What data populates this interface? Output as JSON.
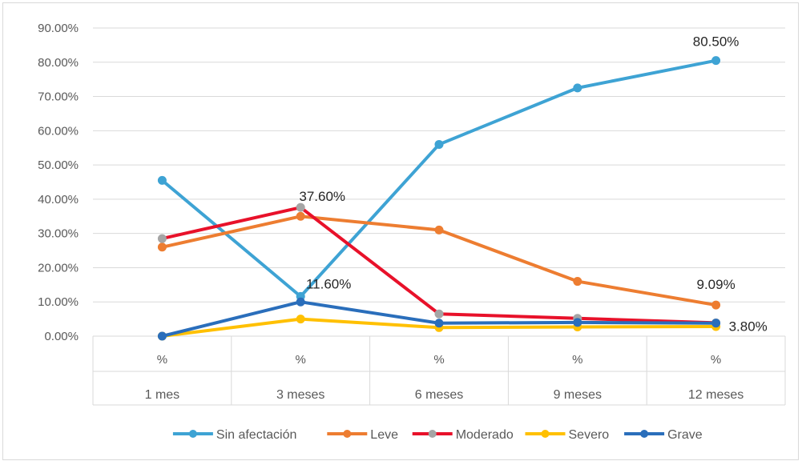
{
  "chart_data": {
    "type": "line",
    "title": "",
    "xlabel": "",
    "ylabel": "",
    "ylim": [
      0,
      90
    ],
    "yticks": [
      0,
      10,
      20,
      30,
      40,
      50,
      60,
      70,
      80,
      90
    ],
    "y_tick_labels": [
      "0.00%",
      "10.00%",
      "20.00%",
      "30.00%",
      "40.00%",
      "50.00%",
      "60.00%",
      "70.00%",
      "80.00%",
      "90.00%"
    ],
    "grid": true,
    "legend_position": "bottom",
    "category_header": "%",
    "categories": [
      "1 mes",
      "3 meses",
      "6 meses",
      "9 meses",
      "12 meses"
    ],
    "series": [
      {
        "name": "Sin afectación",
        "color": "#3ea3d4",
        "marker_color": "#3ea3d4",
        "values": [
          45.5,
          11.6,
          56.0,
          72.5,
          80.5
        ]
      },
      {
        "name": "Leve",
        "color": "#ed7d31",
        "marker_color": "#ed7d31",
        "values": [
          26.0,
          35.0,
          31.0,
          16.0,
          9.09
        ]
      },
      {
        "name": "Moderado",
        "color": "#e8112a",
        "marker_color": "#a5a5a5",
        "values": [
          28.5,
          37.6,
          6.5,
          5.2,
          3.9
        ]
      },
      {
        "name": "Severo",
        "color": "#ffc000",
        "marker_color": "#ffc000",
        "values": [
          0.0,
          5.0,
          2.5,
          2.7,
          2.8
        ]
      },
      {
        "name": "Grave",
        "color": "#2a6ebb",
        "marker_color": "#2a6ebb",
        "values": [
          0.0,
          10.0,
          3.8,
          4.0,
          3.8
        ]
      }
    ],
    "data_labels": [
      {
        "text": "80.50%",
        "series": 0,
        "index": 4
      },
      {
        "text": "37.60%",
        "series": 2,
        "index": 1
      },
      {
        "text": "11.60%",
        "series": 0,
        "index": 1
      },
      {
        "text": "9.09%",
        "series": 1,
        "index": 4
      },
      {
        "text": "3.80%",
        "series": 4,
        "index": 4
      }
    ]
  }
}
